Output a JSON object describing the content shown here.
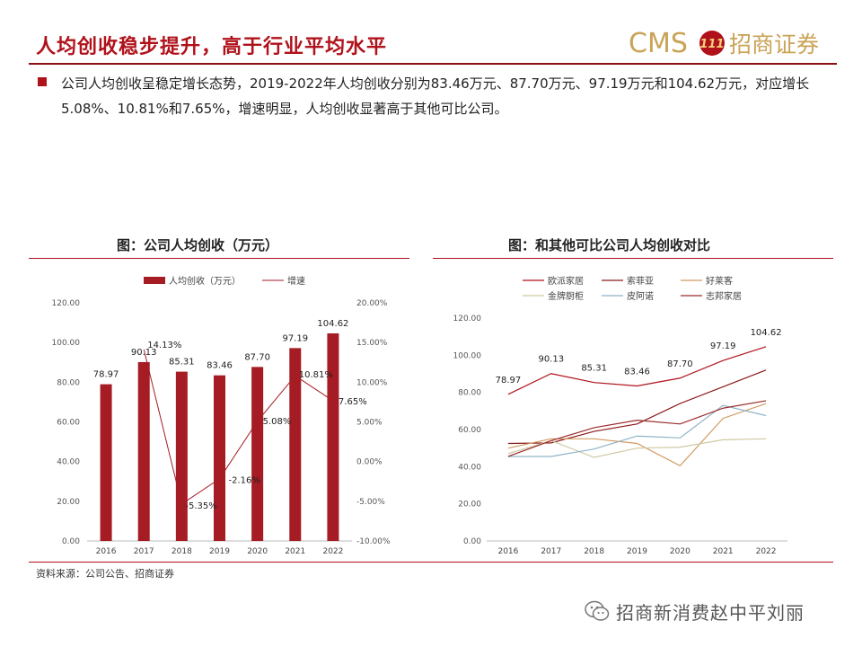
{
  "header": {
    "title": "人均创收稳步提升，高于行业平均水平",
    "logo_text_latin": "CMS",
    "logo_text_cn": "招商证券",
    "logo_mark": "111"
  },
  "paragraph": {
    "text": "公司人均创收呈稳定增长态势，2019-2022年人均创收分别为83.46万元、87.70万元、97.19万元和104.62万元，对应增长5.08%、10.81%和7.65%，增速明显，人均创收显著高于其他可比公司。"
  },
  "colors": {
    "accent": "#b0121b",
    "dark_red": "#8b0e14"
  },
  "chart_data": [
    {
      "type": "bar",
      "title": "图：公司人均创收（万元）",
      "categories": [
        "2016",
        "2017",
        "2018",
        "2019",
        "2020",
        "2021",
        "2022"
      ],
      "series": [
        {
          "name": "人均创收（万元）",
          "type": "bar",
          "axis": "left",
          "values": [
            78.97,
            90.13,
            85.31,
            83.46,
            87.7,
            97.19,
            104.62
          ],
          "labels": [
            "78.97",
            "90.13",
            "85.31",
            "83.46",
            "87.70",
            "97.19",
            "104.62"
          ],
          "color": "#a51c24"
        },
        {
          "name": "增速",
          "type": "line",
          "axis": "right",
          "values": [
            null,
            14.13,
            -5.35,
            -2.16,
            5.08,
            10.81,
            7.65
          ],
          "labels": [
            "",
            "14.13%",
            "-5.35%",
            "-2.16%",
            "5.08%",
            "10.81%",
            "7.65%"
          ],
          "color": "#a51c24"
        }
      ],
      "y_left": {
        "ylim": [
          0,
          120
        ],
        "ticks": [
          "0.00",
          "20.00",
          "40.00",
          "60.00",
          "80.00",
          "100.00",
          "120.00"
        ]
      },
      "y_right": {
        "ylim": [
          -10,
          20
        ],
        "ticks": [
          "-10.00%",
          "-5.00%",
          "0.00%",
          "5.00%",
          "10.00%",
          "15.00%",
          "20.00%"
        ]
      },
      "legend": "top-center",
      "grid": false
    },
    {
      "type": "line",
      "title": "图：和其他可比公司人均创收对比",
      "x": [
        "2016",
        "2017",
        "2018",
        "2019",
        "2020",
        "2021",
        "2022"
      ],
      "series": [
        {
          "name": "欧派家居",
          "color": "#b0121b",
          "values": [
            78.97,
            90.13,
            85.31,
            83.46,
            87.7,
            97.19,
            104.62
          ],
          "labels": [
            "78.97",
            "90.13",
            "85.31",
            "83.46",
            "87.70",
            "97.19",
            "104.62"
          ]
        },
        {
          "name": "索菲亚",
          "color": "#8b1a1a",
          "values": [
            52.5,
            52.8,
            59.0,
            63.0,
            74.0,
            83.0,
            92.0
          ]
        },
        {
          "name": "好莱客",
          "color": "#d29a61",
          "values": [
            50.0,
            55.0,
            55.0,
            52.5,
            40.5,
            66.0,
            74.0
          ]
        },
        {
          "name": "金牌厨柜",
          "color": "#cfc9a4",
          "values": [
            47.0,
            54.0,
            45.0,
            50.0,
            50.5,
            54.5,
            55.0
          ]
        },
        {
          "name": "皮阿诺",
          "color": "#8fb3c8",
          "values": [
            45.5,
            45.5,
            49.5,
            56.5,
            55.5,
            73.0,
            67.5
          ]
        },
        {
          "name": "志邦家居",
          "color": "#9c2b2b",
          "values": [
            45.5,
            54.0,
            61.0,
            65.0,
            63.0,
            71.5,
            75.5
          ]
        }
      ],
      "ylim": [
        0,
        120
      ],
      "yticks": [
        "0.00",
        "20.00",
        "40.00",
        "60.00",
        "80.00",
        "100.00",
        "120.00"
      ],
      "legend": "top-left",
      "grid": false
    }
  ],
  "source": "资料来源：公司公告、招商证券",
  "watermark": {
    "text": "招商新消费赵中平刘丽",
    "icon": "wechat-icon"
  }
}
